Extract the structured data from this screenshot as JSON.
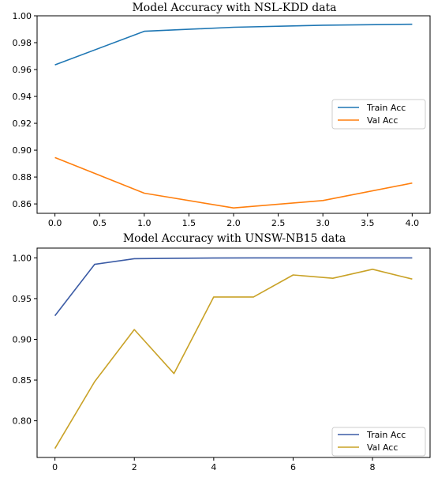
{
  "chart_data": [
    {
      "type": "line",
      "title": "Model Accuracy with NSL-KDD data",
      "xlabel": "",
      "ylabel": "",
      "x": [
        0,
        1,
        2,
        3,
        4
      ],
      "xlim": [
        -0.2,
        4.2
      ],
      "ylim": [
        0.853,
        1.0
      ],
      "xticks": [
        0.0,
        0.5,
        1.0,
        1.5,
        2.0,
        2.5,
        3.0,
        3.5,
        4.0
      ],
      "xtick_labels": [
        "0.0",
        "0.5",
        "1.0",
        "1.5",
        "2.0",
        "2.5",
        "3.0",
        "3.5",
        "4.0"
      ],
      "yticks": [
        0.86,
        0.88,
        0.9,
        0.92,
        0.94,
        0.96,
        0.98,
        1.0
      ],
      "ytick_labels": [
        "0.86",
        "0.88",
        "0.90",
        "0.92",
        "0.94",
        "0.96",
        "0.98",
        "1.00"
      ],
      "legend_position": "center-right",
      "grid": false,
      "series": [
        {
          "name": "Train Acc",
          "color": "#1f77b4",
          "values": [
            0.9635,
            0.9885,
            0.9915,
            0.993,
            0.9937
          ]
        },
        {
          "name": "Val Acc",
          "color": "#ff7f0e",
          "values": [
            0.8945,
            0.868,
            0.857,
            0.8625,
            0.8755
          ]
        }
      ]
    },
    {
      "type": "line",
      "title": "Model Accuracy with UNSW-NB15 data",
      "xlabel": "",
      "ylabel": "",
      "x": [
        0,
        1,
        2,
        3,
        4,
        5,
        6,
        7,
        8,
        9
      ],
      "xlim": [
        -0.45,
        9.45
      ],
      "ylim": [
        0.755,
        1.012
      ],
      "xticks": [
        0,
        2,
        4,
        6,
        8
      ],
      "xtick_labels": [
        "0",
        "2",
        "4",
        "6",
        "8"
      ],
      "yticks": [
        0.8,
        0.85,
        0.9,
        0.95,
        1.0
      ],
      "ytick_labels": [
        "0.80",
        "0.85",
        "0.90",
        "0.95",
        "1.00"
      ],
      "legend_position": "lower-right",
      "grid": false,
      "series": [
        {
          "name": "Train Acc",
          "color": "#3b5ba5",
          "values": [
            0.929,
            0.992,
            0.999,
            0.9995,
            0.9998,
            1.0,
            1.0,
            1.0,
            1.0,
            1.0
          ]
        },
        {
          "name": "Val Acc",
          "color": "#c9a227",
          "values": [
            0.766,
            0.848,
            0.912,
            0.858,
            0.952,
            0.952,
            0.979,
            0.975,
            0.986,
            0.974
          ]
        }
      ]
    }
  ]
}
